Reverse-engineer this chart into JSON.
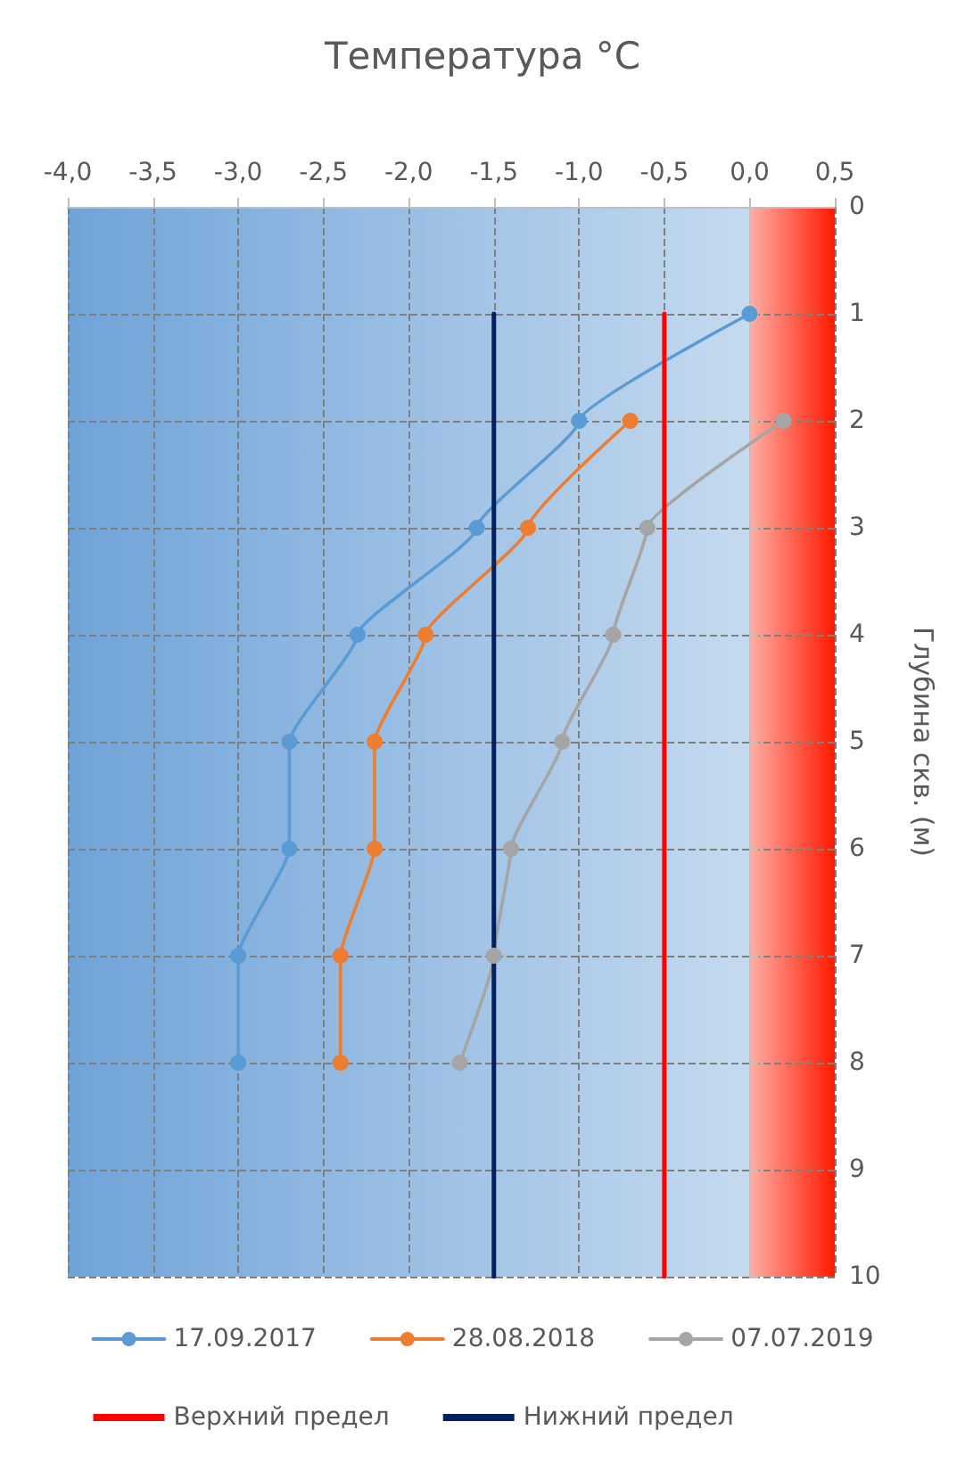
{
  "chart_data": {
    "type": "line",
    "title": "Температура °С",
    "ylabel": "Глубина скв. (м)",
    "xlim": [
      -4,
      0.5
    ],
    "xticks": [
      {
        "value": -4,
        "label": "-4,0"
      },
      {
        "value": -3.5,
        "label": "-3,5"
      },
      {
        "value": -3,
        "label": "-3,0"
      },
      {
        "value": -2.5,
        "label": "-2,5"
      },
      {
        "value": -2,
        "label": "-2,0"
      },
      {
        "value": -1.5,
        "label": "-1,5"
      },
      {
        "value": -1,
        "label": "-1,0"
      },
      {
        "value": -0.5,
        "label": "-0,5"
      },
      {
        "value": 0,
        "label": "0,0"
      },
      {
        "value": 0.5,
        "label": "0,5"
      }
    ],
    "ylim": [
      10,
      0
    ],
    "yticks": [
      0,
      1,
      2,
      3,
      4,
      5,
      6,
      7,
      8,
      9,
      10
    ],
    "grid": true,
    "legend": "bottom",
    "marker": "circle",
    "line_style": "solid",
    "bands": [
      {
        "axis": "x",
        "from": -4,
        "to": 0,
        "color": "#6fa3d8"
      },
      {
        "axis": "x",
        "from": 0,
        "to": 0.5,
        "color": "#ff1a00"
      }
    ],
    "series": [
      {
        "name": "17.09.2017",
        "color": "#5b9bd5",
        "x": [
          0.0,
          -1.0,
          -1.6,
          -2.3,
          -2.7,
          -2.7,
          -3.0,
          -3.0
        ],
        "values": [
          1,
          2,
          3,
          4,
          5,
          6,
          7,
          8
        ]
      },
      {
        "name": "28.08.2018",
        "color": "#ed7d31",
        "x": [
          -0.7,
          -1.3,
          -1.9,
          -2.2,
          -2.2,
          -2.4,
          -2.4
        ],
        "values": [
          2,
          3,
          4,
          5,
          6,
          7,
          8
        ]
      },
      {
        "name": "07.07.2019",
        "color": "#a5a5a5",
        "x": [
          0.2,
          -0.6,
          -0.8,
          -1.1,
          -1.4,
          -1.5,
          -1.7
        ],
        "values": [
          2,
          3,
          4,
          5,
          6,
          7,
          8
        ]
      },
      {
        "name": "Верхний предел",
        "color": "#ff0000",
        "marker": "none",
        "x": [
          -0.5,
          -0.5
        ],
        "values": [
          1,
          10
        ]
      },
      {
        "name": "Нижний предел",
        "color": "#002060",
        "marker": "none",
        "x": [
          -1.5,
          -1.5
        ],
        "values": [
          1,
          10
        ]
      }
    ]
  }
}
